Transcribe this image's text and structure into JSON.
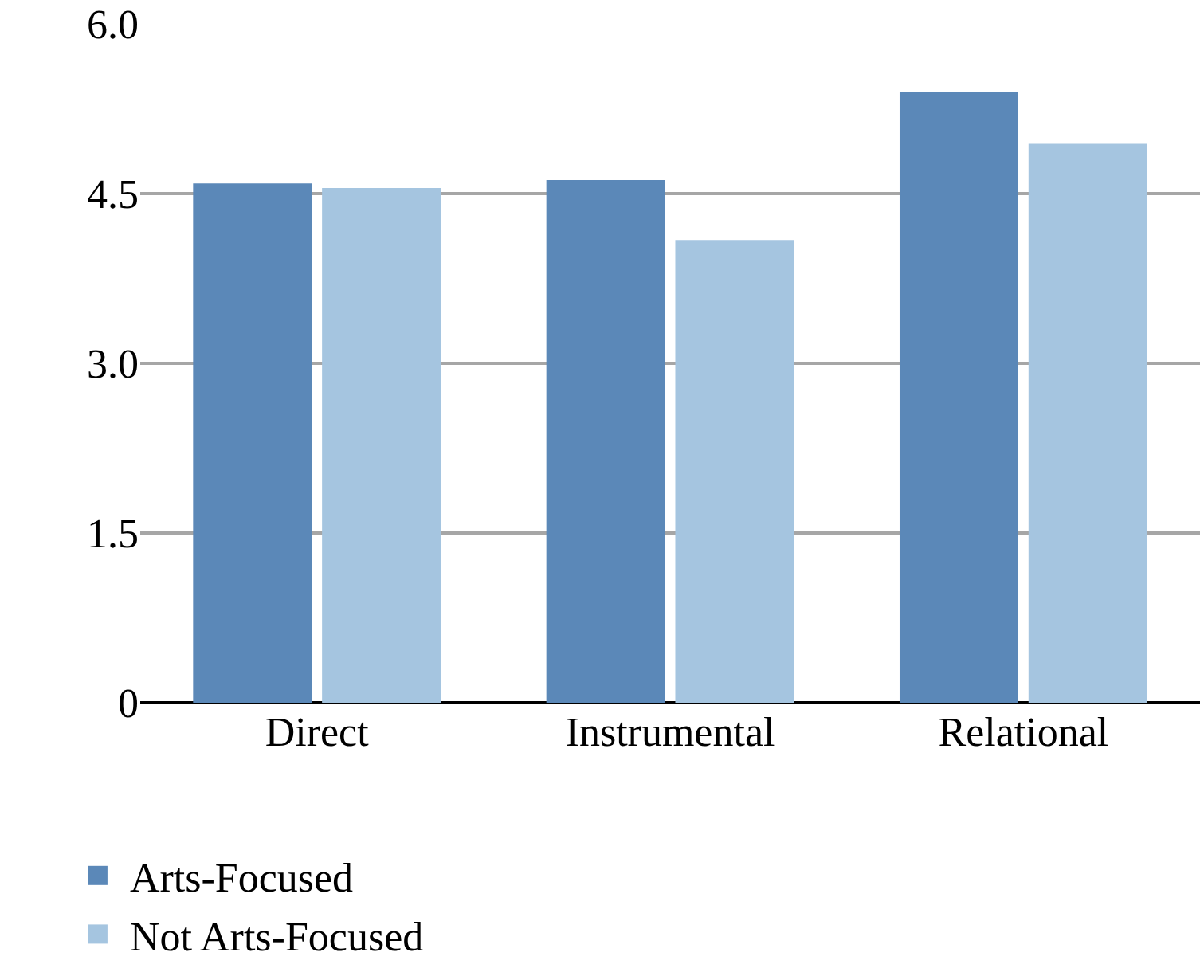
{
  "chart_data": {
    "type": "bar",
    "categories": [
      "Direct",
      "Instrumental",
      "Relational"
    ],
    "series": [
      {
        "name": "Arts-Focused",
        "color": "#5b88b8",
        "values": [
          4.59,
          4.62,
          5.4
        ]
      },
      {
        "name": "Not Arts-Focused",
        "color": "#a5c5e0",
        "values": [
          4.55,
          4.09,
          4.94
        ]
      }
    ],
    "ylim": [
      0,
      6.0
    ],
    "yticks": [
      {
        "value": 0,
        "label": "0"
      },
      {
        "value": 1.5,
        "label": "1.5"
      },
      {
        "value": 3.0,
        "label": "3.0"
      },
      {
        "value": 4.5,
        "label": "4.5"
      },
      {
        "value": 6.0,
        "label": "6.0"
      }
    ],
    "grid": "y",
    "legend": "bottom"
  }
}
